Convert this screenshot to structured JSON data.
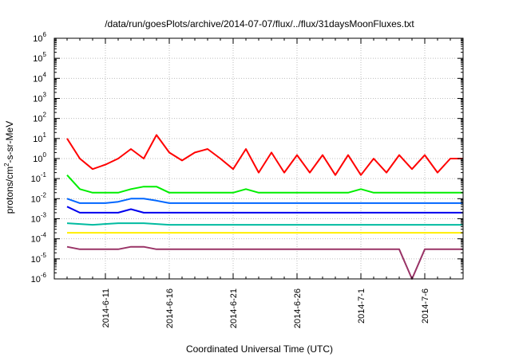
{
  "chart_data": {
    "type": "line",
    "title": "/data/run/goesPlots/archive/2014-07-07/flux/../flux/31daysMoonFluxes.txt",
    "xlabel": "Coordinated Universal Time (UTC)",
    "ylabel": "protons/cm2-s-sr-MeV",
    "ylabel_parts": {
      "pre": "protons/cm",
      "sup": "2",
      "post": "-s-sr-MeV"
    },
    "yscale": "log",
    "ylim": [
      1e-06,
      1000000.0
    ],
    "xlim": [
      "2014-06-07",
      "2014-07-09"
    ],
    "x_ticks": [
      "2014-6-11",
      "2014-6-16",
      "2014-6-21",
      "2014-6-26",
      "2014-7-1",
      "2014-7-6"
    ],
    "y_ticks": [
      {
        "base": "10",
        "exp": "-6"
      },
      {
        "base": "10",
        "exp": "-5"
      },
      {
        "base": "10",
        "exp": "-4"
      },
      {
        "base": "10",
        "exp": "-3"
      },
      {
        "base": "10",
        "exp": "-2"
      },
      {
        "base": "10",
        "exp": "-1"
      },
      {
        "base": "10",
        "exp": "0"
      },
      {
        "base": "10",
        "exp": "1"
      },
      {
        "base": "10",
        "exp": "2"
      },
      {
        "base": "10",
        "exp": "3"
      },
      {
        "base": "10",
        "exp": "4"
      },
      {
        "base": "10",
        "exp": "5"
      },
      {
        "base": "10",
        "exp": "6"
      }
    ],
    "grid": true,
    "series": [
      {
        "color": "#ff0000",
        "x": [
          "2014-06-08",
          "2014-06-09",
          "2014-06-10",
          "2014-06-11",
          "2014-06-12",
          "2014-06-13",
          "2014-06-14",
          "2014-06-15",
          "2014-06-16",
          "2014-06-17",
          "2014-06-18",
          "2014-06-19",
          "2014-06-20",
          "2014-06-21",
          "2014-06-22",
          "2014-06-23",
          "2014-06-24",
          "2014-06-25",
          "2014-06-26",
          "2014-06-27",
          "2014-06-28",
          "2014-06-29",
          "2014-06-30",
          "2014-07-01",
          "2014-07-02",
          "2014-07-03",
          "2014-07-04",
          "2014-07-05",
          "2014-07-06",
          "2014-07-07",
          "2014-07-08",
          "2014-07-09"
        ],
        "y": [
          10,
          1,
          0.3,
          0.5,
          1,
          3,
          1,
          15,
          2,
          0.8,
          2,
          3,
          1,
          0.3,
          3,
          0.2,
          2,
          0.2,
          1.5,
          0.2,
          1.5,
          0.15,
          1.5,
          0.15,
          1,
          0.2,
          1.5,
          0.3,
          1.5,
          0.2,
          1,
          1
        ]
      },
      {
        "color": "#00ee00",
        "x": [
          "2014-06-08",
          "2014-06-09",
          "2014-06-10",
          "2014-06-11",
          "2014-06-12",
          "2014-06-13",
          "2014-06-14",
          "2014-06-15",
          "2014-06-16",
          "2014-06-17",
          "2014-06-18",
          "2014-06-19",
          "2014-06-20",
          "2014-06-21",
          "2014-06-22",
          "2014-06-23",
          "2014-06-24",
          "2014-06-25",
          "2014-06-26",
          "2014-06-27",
          "2014-06-28",
          "2014-06-29",
          "2014-06-30",
          "2014-07-01",
          "2014-07-02",
          "2014-07-03",
          "2014-07-04",
          "2014-07-05",
          "2014-07-06",
          "2014-07-07",
          "2014-07-08",
          "2014-07-09"
        ],
        "y": [
          0.15,
          0.03,
          0.02,
          0.02,
          0.02,
          0.03,
          0.04,
          0.04,
          0.02,
          0.02,
          0.02,
          0.02,
          0.02,
          0.02,
          0.03,
          0.02,
          0.02,
          0.02,
          0.02,
          0.02,
          0.02,
          0.02,
          0.02,
          0.03,
          0.02,
          0.02,
          0.02,
          0.02,
          0.02,
          0.02,
          0.02,
          0.02
        ]
      },
      {
        "color": "#0066ff",
        "x": [
          "2014-06-08",
          "2014-06-09",
          "2014-06-10",
          "2014-06-11",
          "2014-06-12",
          "2014-06-13",
          "2014-06-14",
          "2014-06-15",
          "2014-06-16",
          "2014-06-17",
          "2014-06-18",
          "2014-06-19",
          "2014-06-20",
          "2014-06-21",
          "2014-06-22",
          "2014-06-23",
          "2014-06-24",
          "2014-06-25",
          "2014-06-26",
          "2014-06-27",
          "2014-06-28",
          "2014-06-29",
          "2014-06-30",
          "2014-07-01",
          "2014-07-02",
          "2014-07-03",
          "2014-07-04",
          "2014-07-05",
          "2014-07-06",
          "2014-07-07",
          "2014-07-08",
          "2014-07-09"
        ],
        "y": [
          0.01,
          0.006,
          0.006,
          0.006,
          0.007,
          0.01,
          0.01,
          0.008,
          0.006,
          0.006,
          0.006,
          0.006,
          0.006,
          0.006,
          0.006,
          0.006,
          0.006,
          0.006,
          0.006,
          0.006,
          0.006,
          0.006,
          0.006,
          0.006,
          0.006,
          0.006,
          0.006,
          0.006,
          0.006,
          0.006,
          0.006,
          0.006
        ]
      },
      {
        "color": "#0000ee",
        "x": [
          "2014-06-08",
          "2014-06-09",
          "2014-06-10",
          "2014-06-11",
          "2014-06-12",
          "2014-06-13",
          "2014-06-14",
          "2014-06-15",
          "2014-06-16",
          "2014-06-17",
          "2014-06-18",
          "2014-06-19",
          "2014-06-20",
          "2014-06-21",
          "2014-06-22",
          "2014-06-23",
          "2014-06-24",
          "2014-06-25",
          "2014-06-26",
          "2014-06-27",
          "2014-06-28",
          "2014-06-29",
          "2014-06-30",
          "2014-07-01",
          "2014-07-02",
          "2014-07-03",
          "2014-07-04",
          "2014-07-05",
          "2014-07-06",
          "2014-07-07",
          "2014-07-08",
          "2014-07-09"
        ],
        "y": [
          0.004,
          0.002,
          0.002,
          0.002,
          0.002,
          0.003,
          0.002,
          0.002,
          0.002,
          0.002,
          0.002,
          0.002,
          0.002,
          0.002,
          0.002,
          0.002,
          0.002,
          0.002,
          0.002,
          0.002,
          0.002,
          0.002,
          0.002,
          0.002,
          0.002,
          0.002,
          0.002,
          0.002,
          0.002,
          0.002,
          0.002,
          0.002
        ]
      },
      {
        "color": "#00bba0",
        "x": [
          "2014-06-08",
          "2014-06-10",
          "2014-06-12",
          "2014-06-14",
          "2014-06-16",
          "2014-06-18",
          "2014-06-20",
          "2014-06-22",
          "2014-06-24",
          "2014-06-26",
          "2014-06-28",
          "2014-06-30",
          "2014-07-02",
          "2014-07-04",
          "2014-07-06",
          "2014-07-08",
          "2014-07-09"
        ],
        "y": [
          0.0006,
          0.0005,
          0.0006,
          0.0006,
          0.0005,
          0.0005,
          0.0005,
          0.0005,
          0.0005,
          0.0005,
          0.0005,
          0.0005,
          0.0005,
          0.0005,
          0.0005,
          0.0005,
          0.0005
        ]
      },
      {
        "color": "#ffee00",
        "x": [
          "2014-06-08",
          "2014-06-10",
          "2014-06-12",
          "2014-06-14",
          "2014-06-16",
          "2014-06-18",
          "2014-06-20",
          "2014-06-22",
          "2014-06-24",
          "2014-06-26",
          "2014-06-28",
          "2014-06-30",
          "2014-07-02",
          "2014-07-04",
          "2014-07-06",
          "2014-07-08",
          "2014-07-09"
        ],
        "y": [
          0.0002,
          0.0002,
          0.0002,
          0.0002,
          0.0002,
          0.0002,
          0.0002,
          0.0002,
          0.0002,
          0.0002,
          0.0002,
          0.0002,
          0.0002,
          0.0002,
          0.0002,
          0.0002,
          0.0002
        ]
      },
      {
        "color": "#993366",
        "x": [
          "2014-06-08",
          "2014-06-09",
          "2014-06-10",
          "2014-06-11",
          "2014-06-12",
          "2014-06-13",
          "2014-06-14",
          "2014-06-15",
          "2014-06-16",
          "2014-06-17",
          "2014-06-18",
          "2014-06-19",
          "2014-06-20",
          "2014-06-21",
          "2014-06-22",
          "2014-06-23",
          "2014-06-24",
          "2014-06-25",
          "2014-06-26",
          "2014-06-27",
          "2014-06-28",
          "2014-06-29",
          "2014-06-30",
          "2014-07-01",
          "2014-07-02",
          "2014-07-03",
          "2014-07-04",
          "2014-07-05",
          "2014-07-06",
          "2014-07-07",
          "2014-07-08",
          "2014-07-09"
        ],
        "y": [
          4e-05,
          3e-05,
          3e-05,
          3e-05,
          3e-05,
          4e-05,
          4e-05,
          3e-05,
          3e-05,
          3e-05,
          3e-05,
          3e-05,
          3e-05,
          3e-05,
          3e-05,
          3e-05,
          3e-05,
          3e-05,
          3e-05,
          3e-05,
          3e-05,
          3e-05,
          3e-05,
          3e-05,
          3e-05,
          3e-05,
          3e-05,
          1e-06,
          3e-05,
          3e-05,
          3e-05,
          3e-05
        ]
      }
    ]
  }
}
